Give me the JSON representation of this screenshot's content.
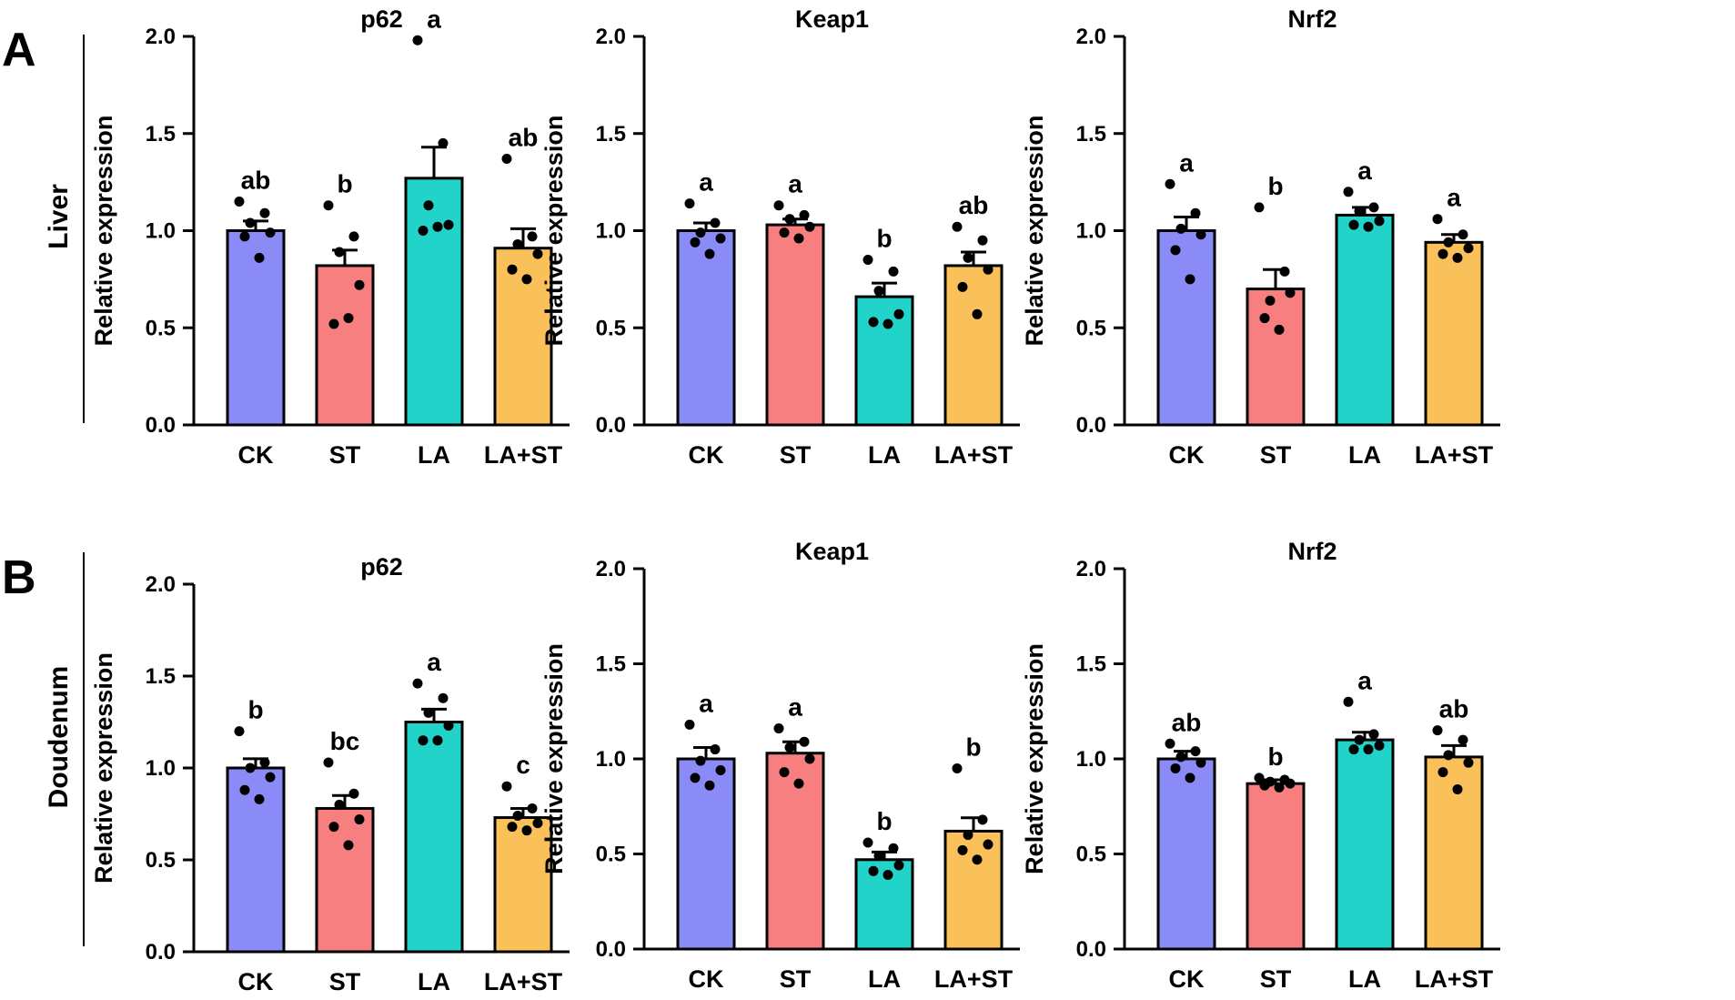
{
  "figure": {
    "panels": [
      {
        "letter": "A",
        "tissue": "Liver"
      },
      {
        "letter": "B",
        "tissue": "Doudenum"
      }
    ],
    "bar_colors": [
      "#8B8BF7",
      "#F77F7F",
      "#22D3C9",
      "#FAC15B"
    ]
  },
  "chart_data": [
    {
      "type": "bar",
      "title": "p62",
      "ylabel": "Relative expression",
      "categories": [
        "CK",
        "ST",
        "LA",
        "LA+ST"
      ],
      "ylim": [
        0,
        2.0
      ],
      "yticks": [
        "0.0",
        "0.5",
        "1.0",
        "1.5",
        "2.0"
      ],
      "values": [
        1.0,
        0.82,
        1.27,
        0.91
      ],
      "errors": [
        0.05,
        0.08,
        0.16,
        0.1
      ],
      "significance": [
        "ab",
        "b",
        "a",
        "ab"
      ],
      "points": [
        [
          1.15,
          1.09,
          1.04,
          0.99,
          0.97,
          0.86
        ],
        [
          1.13,
          0.97,
          0.89,
          0.72,
          0.52,
          0.55
        ],
        [
          1.98,
          1.45,
          1.13,
          1.03,
          1.0,
          1.02
        ],
        [
          1.37,
          0.97,
          0.93,
          0.88,
          0.8,
          0.75
        ]
      ]
    },
    {
      "type": "bar",
      "title": "Keap1",
      "ylabel": "Relative expression",
      "categories": [
        "CK",
        "ST",
        "LA",
        "LA+ST"
      ],
      "ylim": [
        0,
        2.0
      ],
      "yticks": [
        "0.0",
        "0.5",
        "1.0",
        "1.5",
        "2.0"
      ],
      "values": [
        1.0,
        1.03,
        0.66,
        0.82
      ],
      "errors": [
        0.04,
        0.03,
        0.07,
        0.07
      ],
      "significance": [
        "a",
        "a",
        "b",
        "ab"
      ],
      "points": [
        [
          1.14,
          1.04,
          0.99,
          0.96,
          0.94,
          0.88
        ],
        [
          1.13,
          1.08,
          1.06,
          1.02,
          0.99,
          0.96
        ],
        [
          0.85,
          0.79,
          0.69,
          0.57,
          0.53,
          0.52
        ],
        [
          1.02,
          0.95,
          0.86,
          0.8,
          0.71,
          0.57
        ]
      ]
    },
    {
      "type": "bar",
      "title": "Nrf2",
      "ylabel": "Relative expression",
      "categories": [
        "CK",
        "ST",
        "LA",
        "LA+ST"
      ],
      "ylim": [
        0,
        2.0
      ],
      "yticks": [
        "0.0",
        "0.5",
        "1.0",
        "1.5",
        "2.0"
      ],
      "values": [
        1.0,
        0.7,
        1.08,
        0.94
      ],
      "errors": [
        0.07,
        0.1,
        0.04,
        0.04
      ],
      "significance": [
        "a",
        "b",
        "a",
        "a"
      ],
      "points": [
        [
          1.24,
          1.09,
          1.01,
          0.98,
          0.9,
          0.75
        ],
        [
          1.12,
          0.79,
          0.64,
          0.68,
          0.55,
          0.49
        ],
        [
          1.2,
          1.12,
          1.1,
          1.05,
          1.03,
          1.02
        ],
        [
          1.06,
          0.98,
          0.94,
          0.91,
          0.88,
          0.86
        ]
      ]
    },
    {
      "type": "bar",
      "title": "p62",
      "ylabel": "Relative expression",
      "categories": [
        "CK",
        "ST",
        "LA",
        "LA+ST"
      ],
      "ylim": [
        0,
        2.0
      ],
      "yticks": [
        "0.0",
        "0.5",
        "1.0",
        "1.5",
        "2.0"
      ],
      "values": [
        1.0,
        0.78,
        1.25,
        0.73
      ],
      "errors": [
        0.05,
        0.07,
        0.07,
        0.05
      ],
      "significance": [
        "b",
        "bc",
        "a",
        "c"
      ],
      "points": [
        [
          1.2,
          1.03,
          1.0,
          0.95,
          0.88,
          0.83
        ],
        [
          1.03,
          0.86,
          0.8,
          0.72,
          0.68,
          0.58
        ],
        [
          1.46,
          1.38,
          1.3,
          1.23,
          1.15,
          1.15
        ],
        [
          0.9,
          0.78,
          0.74,
          0.7,
          0.68,
          0.66
        ]
      ]
    },
    {
      "type": "bar",
      "title": "Keap1",
      "ylabel": "Relative expression",
      "categories": [
        "CK",
        "ST",
        "LA",
        "LA+ST"
      ],
      "ylim": [
        0,
        2.0
      ],
      "yticks": [
        "0.0",
        "0.5",
        "1.0",
        "1.5",
        "2.0"
      ],
      "values": [
        1.0,
        1.03,
        0.47,
        0.62
      ],
      "errors": [
        0.06,
        0.06,
        0.04,
        0.07
      ],
      "significance": [
        "a",
        "a",
        "b",
        "b"
      ],
      "points": [
        [
          1.18,
          1.05,
          0.99,
          0.94,
          0.9,
          0.86
        ],
        [
          1.16,
          1.09,
          1.06,
          1.0,
          0.93,
          0.87
        ],
        [
          0.56,
          0.53,
          0.49,
          0.44,
          0.41,
          0.39
        ],
        [
          0.95,
          0.68,
          0.6,
          0.55,
          0.52,
          0.47
        ]
      ]
    },
    {
      "type": "bar",
      "title": "Nrf2",
      "ylabel": "Relative expression",
      "categories": [
        "CK",
        "ST",
        "LA",
        "LA+ST"
      ],
      "ylim": [
        0,
        2.0
      ],
      "yticks": [
        "0.0",
        "0.5",
        "1.0",
        "1.5",
        "2.0"
      ],
      "values": [
        1.0,
        0.87,
        1.1,
        1.01
      ],
      "errors": [
        0.04,
        0.02,
        0.04,
        0.06
      ],
      "significance": [
        "ab",
        "b",
        "a",
        "ab"
      ],
      "points": [
        [
          1.08,
          1.04,
          1.01,
          0.98,
          0.95,
          0.9
        ],
        [
          0.9,
          0.89,
          0.88,
          0.87,
          0.86,
          0.85
        ],
        [
          1.3,
          1.13,
          1.1,
          1.07,
          1.05,
          1.05
        ],
        [
          1.15,
          1.1,
          1.02,
          0.98,
          0.93,
          0.84
        ]
      ]
    }
  ]
}
